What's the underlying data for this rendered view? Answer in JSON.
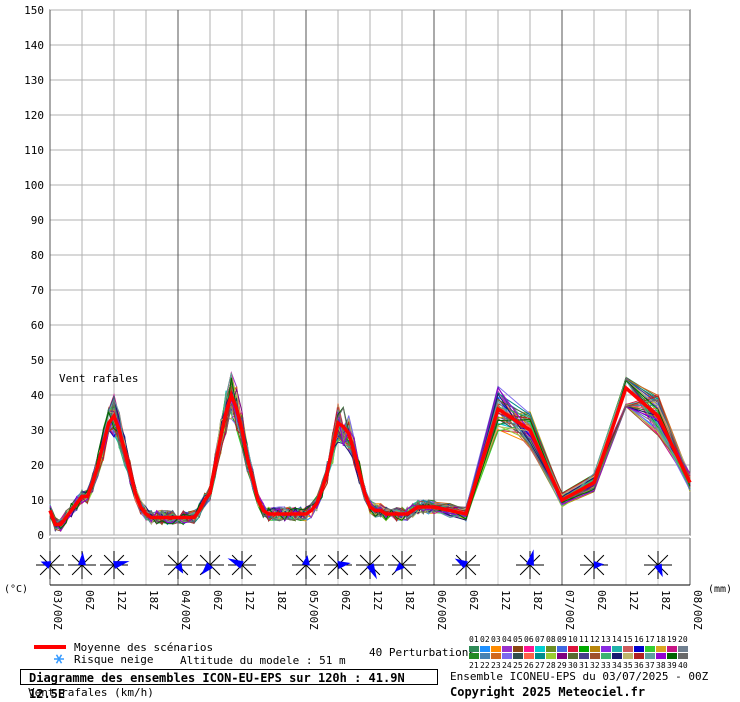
{
  "chart_data": {
    "type": "line",
    "ylim": [
      0,
      150
    ],
    "yticks": [
      0,
      10,
      20,
      30,
      40,
      50,
      60,
      70,
      80,
      90,
      100,
      110,
      120,
      130,
      140,
      150
    ],
    "x_labels": [
      "03/00Z",
      "06Z",
      "12Z",
      "18Z",
      "04/00Z",
      "06Z",
      "12Z",
      "18Z",
      "05/00Z",
      "06Z",
      "12Z",
      "18Z",
      "06/00Z",
      "06Z",
      "12Z",
      "18Z",
      "07/00Z",
      "06Z",
      "12Z",
      "18Z",
      "08/00Z"
    ],
    "x_hours": [
      0,
      6,
      12,
      18,
      24,
      30,
      36,
      42,
      48,
      54,
      60,
      66,
      72,
      78,
      84,
      90,
      96,
      102,
      108,
      114,
      120
    ],
    "annotation": "Vent rafales",
    "left_unit": "(°C)",
    "right_unit": "(mm)",
    "mean_series": {
      "name": "Moyenne des scénarios",
      "color": "#ff0000",
      "hours": [
        0,
        1,
        2,
        3,
        4,
        5,
        6,
        7,
        8,
        9,
        10,
        11,
        12,
        13,
        14,
        15,
        16,
        17,
        18,
        19,
        20,
        21,
        22,
        23,
        24,
        25,
        26,
        27,
        28,
        29,
        30,
        31,
        32,
        33,
        34,
        35,
        36,
        37,
        38,
        39,
        40,
        41,
        42,
        43,
        44,
        45,
        46,
        47,
        48,
        49,
        50,
        51,
        52,
        53,
        54,
        55,
        56,
        57,
        58,
        59,
        60,
        61,
        62,
        63,
        64,
        65,
        66,
        67,
        68,
        69,
        70,
        71,
        72,
        75,
        78,
        84,
        90,
        96,
        102,
        108,
        114,
        120
      ],
      "values": [
        7,
        3,
        3,
        5,
        7,
        9,
        11,
        11,
        15,
        20,
        26,
        32,
        34,
        30,
        24,
        18,
        12,
        8,
        6,
        5,
        5,
        5,
        5,
        5,
        5,
        5,
        5,
        5,
        7,
        10,
        12,
        20,
        28,
        35,
        40,
        36,
        30,
        22,
        16,
        10,
        7,
        6,
        6,
        6,
        6,
        6,
        6,
        6,
        6,
        7,
        9,
        13,
        18,
        25,
        32,
        31,
        29,
        24,
        18,
        12,
        8,
        7,
        7,
        6,
        6,
        6,
        6,
        6,
        7,
        8,
        8,
        8,
        8,
        7,
        6,
        36,
        30,
        10,
        15,
        42,
        34,
        15
      ]
    },
    "perturbations_count": 40,
    "perturbation_labels": [
      "01",
      "02",
      "03",
      "04",
      "05",
      "06",
      "07",
      "08",
      "09",
      "10",
      "11",
      "12",
      "13",
      "14",
      "15",
      "16",
      "17",
      "18",
      "19",
      "20",
      "21",
      "22",
      "23",
      "24",
      "25",
      "26",
      "27",
      "28",
      "29",
      "30",
      "31",
      "32",
      "33",
      "34",
      "35",
      "36",
      "37",
      "38",
      "39",
      "40"
    ],
    "perturbation_colors": [
      "#2e8b57",
      "#1e90ff",
      "#ff8c00",
      "#9932cc",
      "#8b4513",
      "#ff1493",
      "#00ced1",
      "#6b8e23",
      "#4169e1",
      "#dc143c",
      "#00aa00",
      "#b8860b",
      "#8a2be2",
      "#20b2aa",
      "#cd5c5c",
      "#0000cd",
      "#32cd32",
      "#daa520",
      "#c71585",
      "#708090",
      "#228b22",
      "#4682b4",
      "#d2691e",
      "#7b68ee",
      "#2f4f4f",
      "#ff6347",
      "#008b8b",
      "#9acd32",
      "#800080",
      "#556b2f",
      "#483d8b",
      "#a0522d",
      "#3cb371",
      "#191970",
      "#bdb76b",
      "#b22222",
      "#5f9ea0",
      "#9400d3",
      "#006400",
      "#696969"
    ],
    "wind_roses_hours": [
      0,
      6,
      12,
      24,
      30,
      36,
      48,
      54,
      60,
      66,
      78,
      90,
      102,
      114
    ]
  },
  "legend": {
    "mean_label": "Moyenne des scénarios",
    "snow_label": "Risque neige",
    "altitude_label": "Altitude du modele : 51 m",
    "perturbations_label": "40 Perturbations"
  },
  "title": "Diagramme des ensembles ICON-EU-EPS sur 120h : 41.9N 12.5E",
  "subtitle": "Vent rafales (km/h)",
  "credit_run": "Ensemble ICONEU-EPS du 03/07/2025 - 00Z",
  "credit_copyright": "Copyright 2025 Meteociel.fr"
}
